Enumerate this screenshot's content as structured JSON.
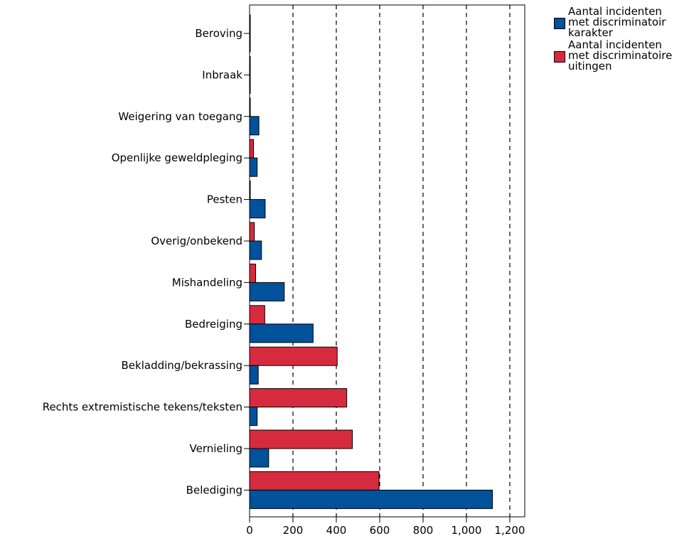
{
  "chart_data": {
    "type": "bar",
    "orientation": "horizontal",
    "categories": [
      "Beroving",
      "Inbraak",
      "Weigering van toegang",
      "Openlijke geweldpleging",
      "Pesten",
      "Overig/onbekend",
      "Mishandeling",
      "Bedreiging",
      "Bekladding/bekrassing",
      "Rechts extremistische tekens/teksten",
      "Vernieling",
      "Belediging"
    ],
    "series": [
      {
        "name": "Aantal incidenten\nmet discriminatoir\nkarakter",
        "color": "#00529b",
        "values": [
          1,
          1,
          43,
          35,
          72,
          55,
          160,
          293,
          40,
          35,
          88,
          1120
        ]
      },
      {
        "name": "Aantal incidenten\nmet discriminatoire\nuitingen",
        "color": "#d62b3e",
        "values": [
          1,
          1,
          2,
          18,
          1,
          22,
          28,
          70,
          404,
          448,
          474,
          597
        ]
      }
    ],
    "xlim": [
      0,
      1260
    ],
    "ticks": [
      0,
      200,
      400,
      600,
      800,
      1000,
      1200
    ],
    "tick_labels": [
      "0",
      "200",
      "400",
      "600",
      "800",
      "1,000",
      "1,200"
    ],
    "grid": "vertical dashed",
    "legend_position": "top-right",
    "title": "",
    "xlabel": "",
    "ylabel": ""
  }
}
